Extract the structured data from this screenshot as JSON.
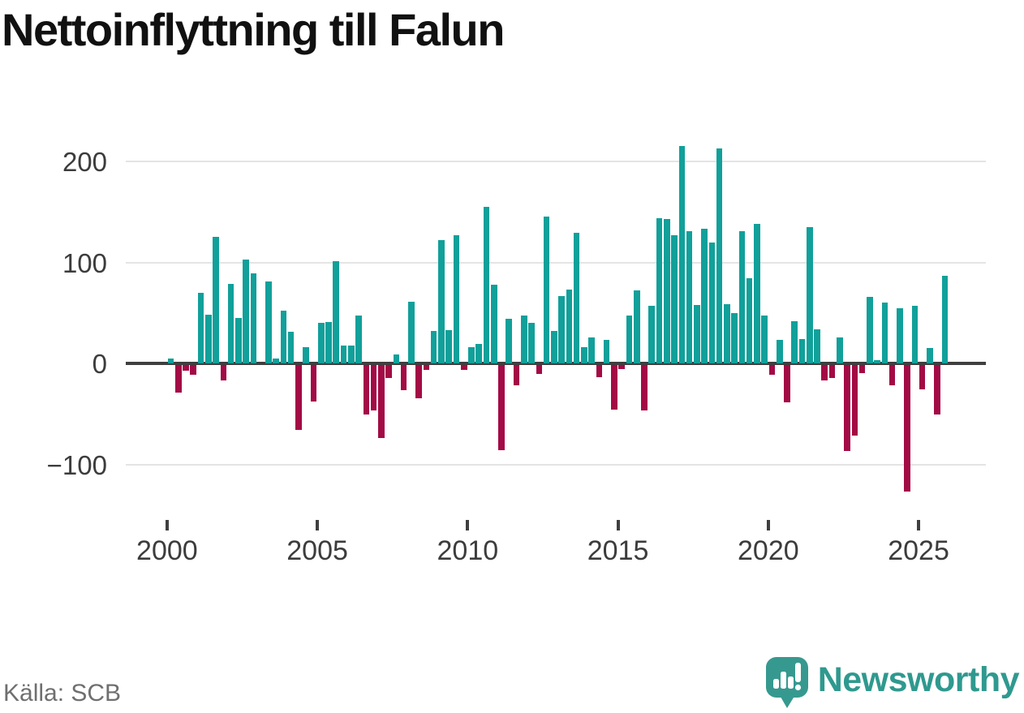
{
  "title": "Nettoinflyttning till Falun",
  "source": "Källa: SCB",
  "branding": {
    "name": "Newsworthy",
    "icon": "newsworthy-speech-bubble-bar-chart-icon"
  },
  "colors": {
    "positive_bar": "#11a09a",
    "negative_bar": "#a30b45",
    "zero_line": "#3f3f3f",
    "gridline": "#e4e4e4",
    "axis_text": "#3c3c3c",
    "title_text": "#111111",
    "source_text": "#6f6f6f",
    "brand_teal": "#2f998f"
  },
  "chart_data": {
    "type": "bar",
    "title": "Nettoinflyttning till Falun",
    "frequency": "quarterly",
    "start_period": "2000Q1",
    "end_period": "2025Q4",
    "x_tick_labels": [
      "2000",
      "2005",
      "2010",
      "2015",
      "2020",
      "2025"
    ],
    "y_tick_labels": [
      "200",
      "100",
      "0",
      "−100"
    ],
    "y_tick_values": [
      200,
      100,
      0,
      -100
    ],
    "ylim": [
      -140,
      232
    ],
    "grid": "horizontal",
    "legend": "none",
    "values": [
      5,
      -27,
      -6,
      -10,
      70,
      48,
      125,
      -15,
      79,
      45,
      103,
      89,
      0,
      81,
      5,
      52,
      31,
      -64,
      16,
      -36,
      40,
      41,
      101,
      18,
      18,
      47,
      -49,
      -45,
      -72,
      -13,
      9,
      -25,
      61,
      -33,
      -5,
      32,
      122,
      33,
      127,
      -5,
      16,
      19,
      155,
      78,
      -84,
      44,
      -20,
      47,
      40,
      -9,
      145,
      32,
      67,
      73,
      129,
      16,
      26,
      -12,
      23,
      -44,
      -4,
      47,
      72,
      -45,
      57,
      144,
      143,
      127,
      215,
      131,
      58,
      133,
      120,
      213,
      59,
      50,
      131,
      84,
      138,
      47,
      -10,
      23,
      -37,
      42,
      24,
      135,
      34,
      -15,
      -13,
      26,
      -85,
      -70,
      -8,
      66,
      3,
      60,
      -20,
      55,
      -125,
      57,
      -24,
      15,
      -49,
      87
    ]
  }
}
